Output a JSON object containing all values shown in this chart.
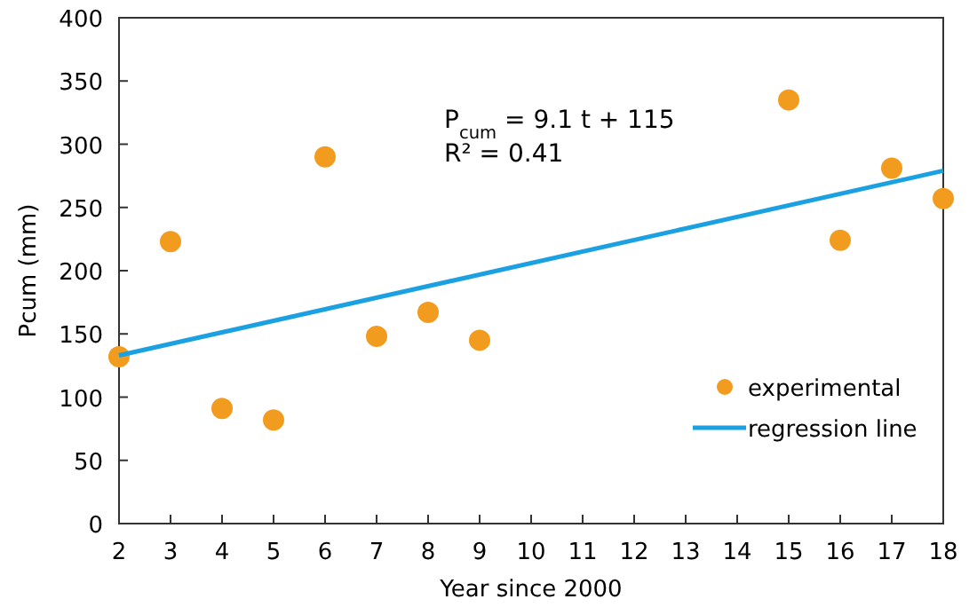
{
  "chart_data": {
    "type": "scatter",
    "xlabel": "Year since 2000",
    "ylabel": "Pcum (mm)",
    "xlim": [
      2,
      18
    ],
    "xticks": [
      2,
      3,
      4,
      5,
      6,
      7,
      8,
      9,
      10,
      11,
      12,
      13,
      14,
      15,
      16,
      17,
      18
    ],
    "ylim": [
      0,
      400
    ],
    "yticks": [
      0,
      50,
      100,
      150,
      200,
      250,
      300,
      350,
      400
    ],
    "legend": "right",
    "grid": false,
    "annotations": [
      "P$_{cum}$ = 9.1 t + 115",
      "R² = 0.41"
    ],
    "series": [
      {
        "name": "experimental",
        "marker": "circle",
        "color": "#f29c1f",
        "x": [
          2,
          3,
          4,
          5,
          6,
          7,
          8,
          9,
          15,
          16,
          17,
          18
        ],
        "values": [
          132,
          223,
          91,
          82,
          290,
          148,
          167,
          145,
          335,
          224,
          281,
          257
        ]
      },
      {
        "name": "regression line",
        "type": "line",
        "line_style": "solid",
        "color": "#1ba1e2",
        "x": [
          2,
          18
        ],
        "values": [
          133,
          279
        ]
      }
    ]
  }
}
